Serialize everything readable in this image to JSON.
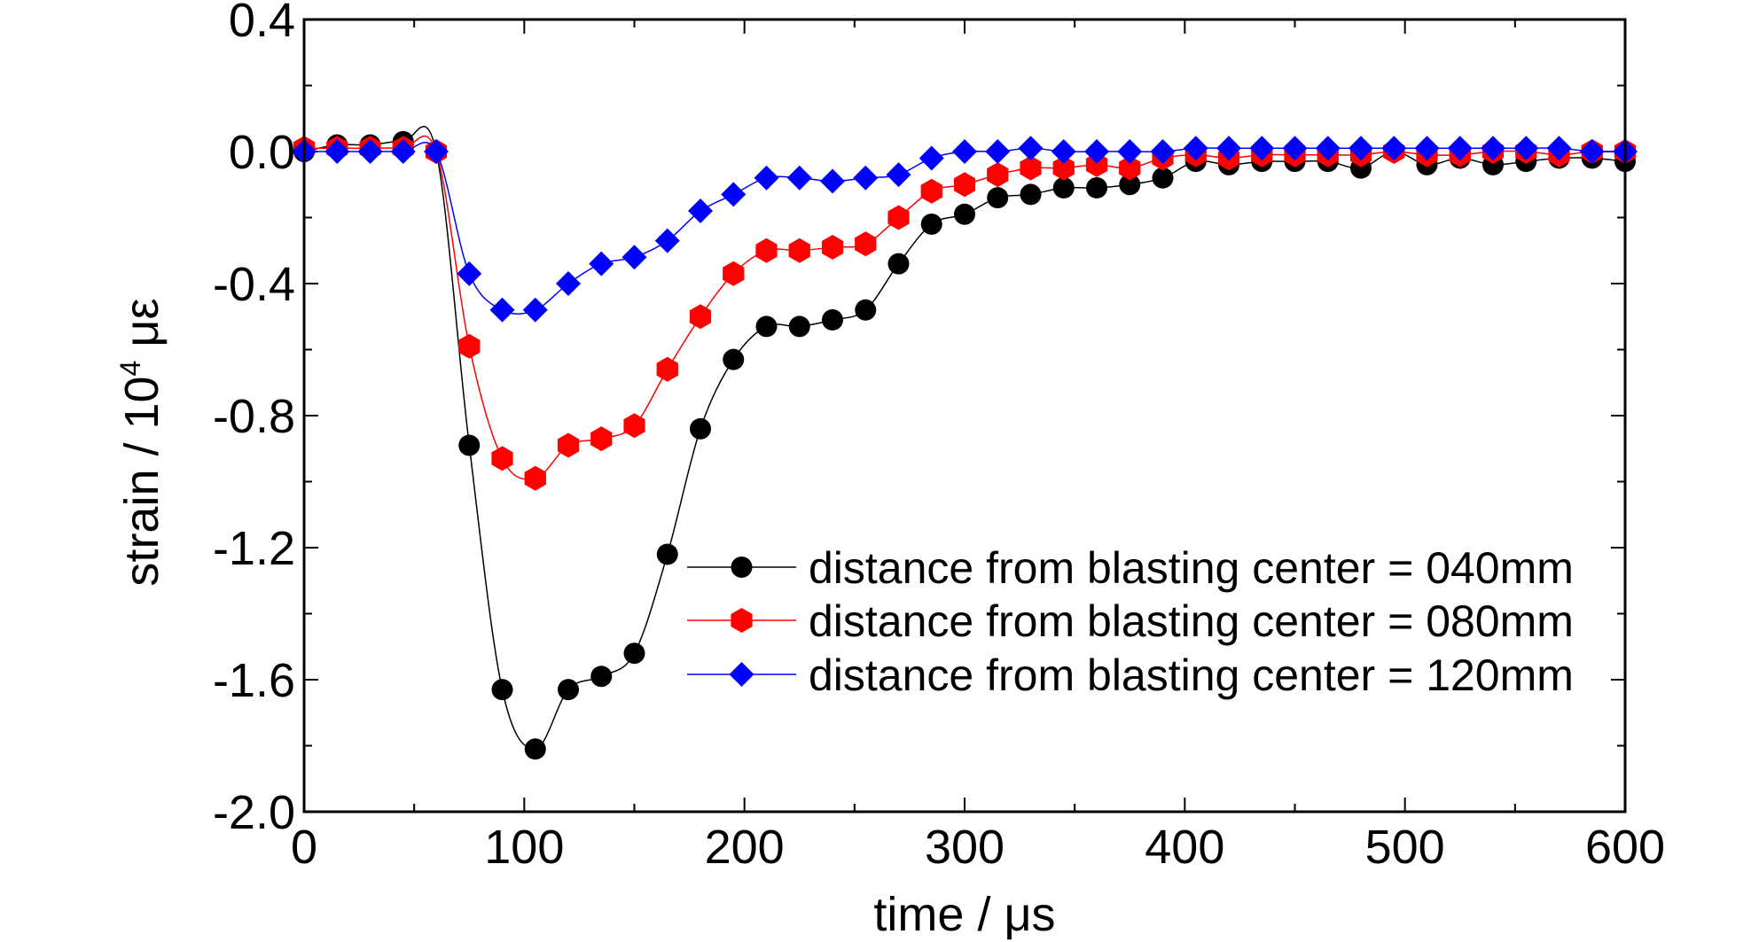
{
  "chart_data": {
    "type": "line",
    "xlabel": "time / μs",
    "ylabel": {
      "pre": "strain / 10",
      "sup": "4",
      "post": " με"
    },
    "xlim": [
      0,
      600
    ],
    "ylim": [
      -2.0,
      0.4
    ],
    "xticks": [
      0,
      100,
      200,
      300,
      400,
      500,
      600
    ],
    "xtick_labels": [
      "0",
      "100",
      "200",
      "300",
      "400",
      "500",
      "600"
    ],
    "yticks": [
      0.4,
      0.0,
      -0.4,
      -0.8,
      -1.2,
      -1.6,
      -2.0
    ],
    "ytick_labels": [
      "0.4",
      "0.0",
      "-0.4",
      "-0.8",
      "-1.2",
      "-1.6",
      "-2.0"
    ],
    "grid": false,
    "legend_position": "bottom-right",
    "series": [
      {
        "name": "distance from blasting center = 040mm",
        "color": "#000000",
        "marker": "circle",
        "x": [
          0,
          15,
          30,
          45,
          60,
          75,
          90,
          105,
          120,
          135,
          150,
          165,
          180,
          195,
          210,
          225,
          240,
          255,
          270,
          285,
          300,
          315,
          330,
          345,
          360,
          375,
          390,
          405,
          420,
          435,
          450,
          465,
          480,
          495,
          510,
          525,
          540,
          555,
          570,
          585,
          600
        ],
        "values": [
          0.0,
          0.02,
          0.02,
          0.03,
          0.0,
          -0.89,
          -1.63,
          -1.81,
          -1.63,
          -1.59,
          -1.52,
          -1.22,
          -0.84,
          -0.63,
          -0.53,
          -0.53,
          -0.51,
          -0.48,
          -0.34,
          -0.22,
          -0.19,
          -0.14,
          -0.13,
          -0.11,
          -0.11,
          -0.1,
          -0.08,
          -0.03,
          -0.04,
          -0.03,
          -0.03,
          -0.03,
          -0.05,
          0.0,
          -0.04,
          -0.02,
          -0.04,
          -0.03,
          -0.02,
          -0.02,
          -0.03
        ]
      },
      {
        "name": "distance from blasting center = 080mm",
        "color": "#ff0000",
        "marker": "hexagon",
        "x": [
          0,
          15,
          30,
          45,
          60,
          75,
          90,
          105,
          120,
          135,
          150,
          165,
          180,
          195,
          210,
          225,
          240,
          255,
          270,
          285,
          300,
          315,
          330,
          345,
          360,
          375,
          390,
          405,
          420,
          435,
          450,
          465,
          480,
          495,
          510,
          525,
          540,
          555,
          570,
          585,
          600
        ],
        "values": [
          0.01,
          0.01,
          0.01,
          0.01,
          0.0,
          -0.59,
          -0.93,
          -0.99,
          -0.89,
          -0.87,
          -0.83,
          -0.66,
          -0.5,
          -0.37,
          -0.3,
          -0.3,
          -0.29,
          -0.28,
          -0.2,
          -0.12,
          -0.1,
          -0.07,
          -0.05,
          -0.05,
          -0.04,
          -0.05,
          -0.02,
          -0.01,
          -0.02,
          -0.01,
          -0.01,
          -0.01,
          -0.01,
          0.0,
          -0.01,
          -0.01,
          0.0,
          0.0,
          -0.01,
          0.0,
          0.0
        ]
      },
      {
        "name": "distance from blasting center = 120mm",
        "color": "#0000ff",
        "marker": "diamond",
        "x": [
          0,
          15,
          30,
          45,
          60,
          75,
          90,
          105,
          120,
          135,
          150,
          165,
          180,
          195,
          210,
          225,
          240,
          255,
          270,
          285,
          300,
          315,
          330,
          345,
          360,
          375,
          390,
          405,
          420,
          435,
          450,
          465,
          480,
          495,
          510,
          525,
          540,
          555,
          570,
          585,
          600
        ],
        "values": [
          0.0,
          0.0,
          0.0,
          0.0,
          0.0,
          -0.37,
          -0.48,
          -0.48,
          -0.4,
          -0.34,
          -0.32,
          -0.27,
          -0.18,
          -0.13,
          -0.08,
          -0.08,
          -0.09,
          -0.08,
          -0.07,
          -0.02,
          0.0,
          0.0,
          0.01,
          0.0,
          0.0,
          0.0,
          0.0,
          0.01,
          0.01,
          0.01,
          0.01,
          0.01,
          0.01,
          0.01,
          0.01,
          0.01,
          0.01,
          0.01,
          0.01,
          0.0,
          0.0
        ]
      }
    ]
  }
}
